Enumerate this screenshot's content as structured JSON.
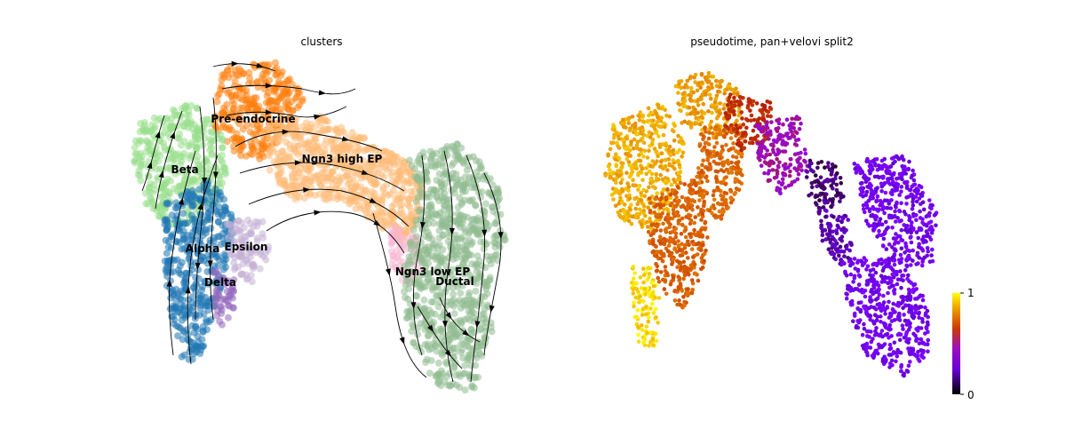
{
  "chart_data": [
    {
      "type": "scatter",
      "title": "clusters",
      "xlabel": "",
      "ylabel": "",
      "grid": false,
      "axes_visible": false,
      "overlay": "velocity streamlines with arrowheads",
      "legend": "on-data",
      "categories": [
        {
          "name": "Pre-endocrine",
          "color": "#ff7f0e",
          "region": [
            [
              250,
              75
            ],
            [
              310,
              70
            ],
            [
              345,
              110
            ],
            [
              330,
              140
            ],
            [
              295,
              180
            ],
            [
              265,
              175
            ],
            [
              240,
              140
            ]
          ]
        },
        {
          "name": "Ngn3 high EP",
          "color": "#ffbb78",
          "region": [
            [
              300,
              140
            ],
            [
              360,
              130
            ],
            [
              420,
              160
            ],
            [
              470,
              190
            ],
            [
              480,
              230
            ],
            [
              455,
              275
            ],
            [
              420,
              250
            ],
            [
              385,
              225
            ],
            [
              330,
              225
            ],
            [
              300,
              190
            ]
          ]
        },
        {
          "name": "Beta",
          "color": "#98df8a",
          "region": [
            [
              155,
              140
            ],
            [
              215,
              115
            ],
            [
              250,
              140
            ],
            [
              255,
              195
            ],
            [
              235,
              250
            ],
            [
              190,
              255
            ],
            [
              160,
              225
            ],
            [
              150,
              180
            ]
          ]
        },
        {
          "name": "Alpha",
          "color": "#1f77b4",
          "region": [
            [
              185,
              230
            ],
            [
              240,
              200
            ],
            [
              265,
              250
            ],
            [
              255,
              300
            ],
            [
              240,
              355
            ],
            [
              225,
              405
            ],
            [
              205,
              405
            ],
            [
              190,
              350
            ],
            [
              185,
              290
            ]
          ]
        },
        {
          "name": "Epsilon",
          "color": "#c5b0d5",
          "region": [
            [
              255,
              250
            ],
            [
              295,
              245
            ],
            [
              305,
              290
            ],
            [
              285,
              320
            ],
            [
              260,
              310
            ]
          ]
        },
        {
          "name": "Delta",
          "color": "#9467bd",
          "region": [
            [
              240,
              300
            ],
            [
              265,
              310
            ],
            [
              265,
              345
            ],
            [
              250,
              370
            ],
            [
              238,
              350
            ]
          ]
        },
        {
          "name": "Ngn3 low EP",
          "color": "#f7b6d2",
          "region": [
            [
              440,
              250
            ],
            [
              470,
              270
            ],
            [
              480,
              300
            ],
            [
              460,
              325
            ],
            [
              440,
              300
            ]
          ]
        },
        {
          "name": "Ductal",
          "color": "#8fbc8f",
          "region": [
            [
              460,
              175
            ],
            [
              515,
              160
            ],
            [
              560,
              200
            ],
            [
              570,
              270
            ],
            [
              550,
              320
            ],
            [
              555,
              370
            ],
            [
              535,
              440
            ],
            [
              500,
              440
            ],
            [
              470,
              405
            ],
            [
              455,
              350
            ],
            [
              455,
              300
            ],
            [
              470,
              240
            ]
          ]
        }
      ],
      "labels": [
        {
          "text": "Pre-endocrine",
          "x": 285,
          "y": 138
        },
        {
          "text": "Ngn3 high EP",
          "x": 385,
          "y": 183
        },
        {
          "text": "Beta",
          "x": 208,
          "y": 195
        },
        {
          "text": "Alpha",
          "x": 228,
          "y": 284
        },
        {
          "text": "Epsilon",
          "x": 277,
          "y": 282
        },
        {
          "text": "Delta",
          "x": 248,
          "y": 322
        },
        {
          "text": "Ngn3 low EP",
          "x": 487,
          "y": 310
        },
        {
          "text": "Ductal",
          "x": 512,
          "y": 321
        }
      ]
    },
    {
      "type": "scatter",
      "title": "pseudotime, pan+velovi split2",
      "xlabel": "",
      "ylabel": "",
      "grid": false,
      "axes_visible": false,
      "color_scale": {
        "name": "gnuplot",
        "min": 0,
        "max": 1,
        "ticks": [
          "0",
          "1"
        ]
      },
      "regions": [
        {
          "value": 0.88,
          "region": [
            [
              690,
              140
            ],
            [
              745,
              115
            ],
            [
              770,
              160
            ],
            [
              765,
              220
            ],
            [
              740,
              260
            ],
            [
              700,
              250
            ],
            [
              680,
              200
            ]
          ]
        },
        {
          "value": 0.85,
          "region": [
            [
              760,
              90
            ],
            [
              795,
              80
            ],
            [
              830,
              100
            ],
            [
              835,
              140
            ],
            [
              800,
              160
            ],
            [
              765,
              140
            ]
          ]
        },
        {
          "value": 0.72,
          "region": [
            [
              730,
              220
            ],
            [
              780,
              200
            ],
            [
              800,
              250
            ],
            [
              790,
              310
            ],
            [
              770,
              350
            ],
            [
              745,
              330
            ],
            [
              730,
              280
            ]
          ]
        },
        {
          "value": 0.74,
          "region": [
            [
              790,
              140
            ],
            [
              840,
              150
            ],
            [
              835,
              210
            ],
            [
              810,
              250
            ],
            [
              780,
              220
            ]
          ]
        },
        {
          "value": 0.95,
          "region": [
            [
              710,
              300
            ],
            [
              735,
              300
            ],
            [
              745,
              345
            ],
            [
              740,
              390
            ],
            [
              720,
              390
            ],
            [
              712,
              345
            ]
          ]
        },
        {
          "value": 0.55,
          "region": [
            [
              820,
              105
            ],
            [
              870,
              115
            ],
            [
              865,
              160
            ],
            [
              835,
              170
            ],
            [
              815,
              140
            ]
          ]
        },
        {
          "value": 0.38,
          "region": [
            [
              850,
              140
            ],
            [
              900,
              130
            ],
            [
              910,
              190
            ],
            [
              880,
              220
            ],
            [
              855,
              195
            ]
          ]
        },
        {
          "value": 0.08,
          "region": [
            [
              910,
              180
            ],
            [
              945,
              185
            ],
            [
              950,
              225
            ],
            [
              925,
              240
            ],
            [
              905,
              215
            ]
          ]
        },
        {
          "value": 0.12,
          "region": [
            [
              920,
              235
            ],
            [
              955,
              240
            ],
            [
              960,
              290
            ],
            [
              945,
              300
            ],
            [
              925,
              270
            ]
          ]
        },
        {
          "value": 0.2,
          "region": [
            [
              960,
              180
            ],
            [
              1020,
              175
            ],
            [
              1055,
              240
            ],
            [
              1050,
              300
            ],
            [
              1010,
              300
            ],
            [
              975,
              250
            ]
          ]
        },
        {
          "value": 0.2,
          "region": [
            [
              945,
              290
            ],
            [
              1010,
              290
            ],
            [
              1045,
              340
            ],
            [
              1045,
              400
            ],
            [
              1020,
              425
            ],
            [
              975,
              400
            ],
            [
              955,
              350
            ]
          ]
        }
      ]
    }
  ]
}
